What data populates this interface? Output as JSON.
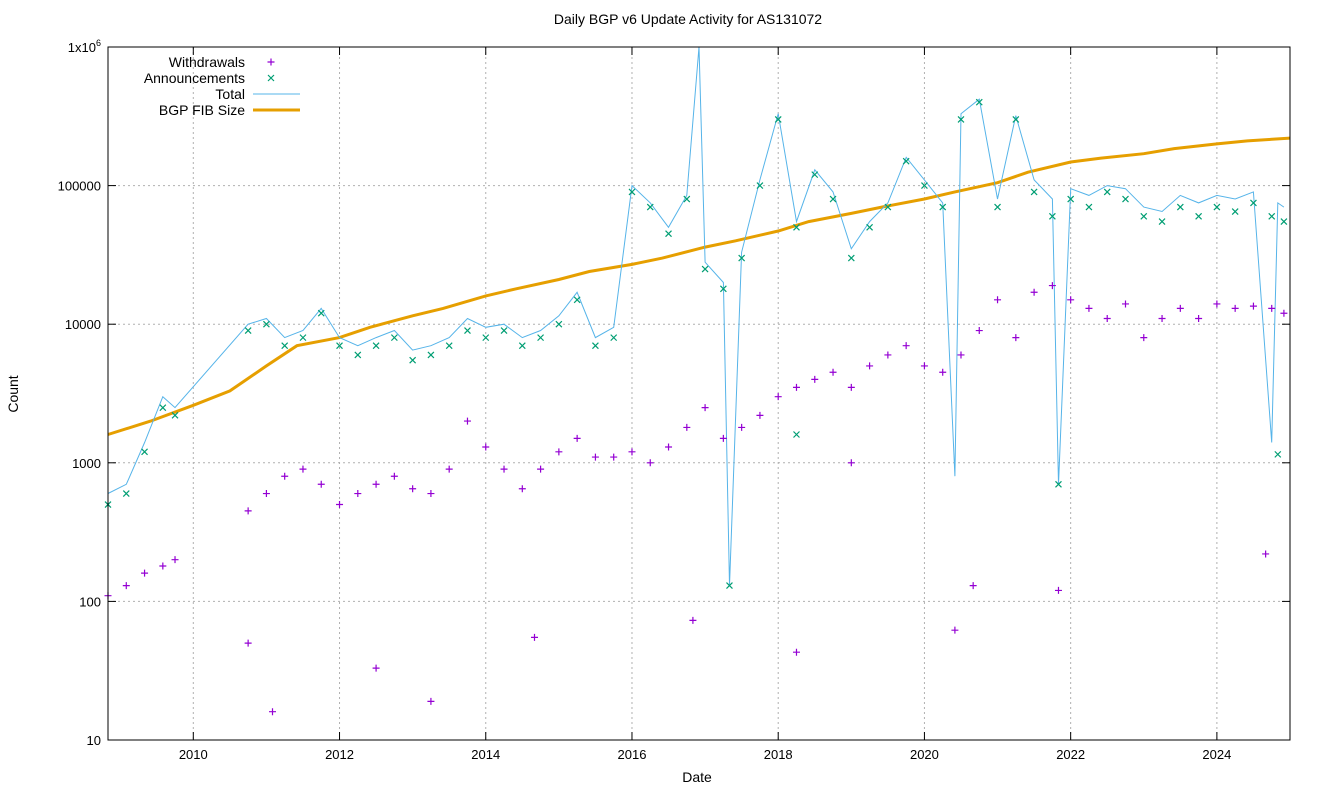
{
  "chart_data": {
    "type": "scatter",
    "title": "Daily BGP v6 Update Activity for AS131072",
    "xlabel": "Date",
    "ylabel": "Count",
    "x_scale": "time",
    "y_scale": "log",
    "xlim": [
      "2008-11-01",
      "2025-01-01"
    ],
    "ylim": [
      10,
      1000000
    ],
    "grid": true,
    "legend_position": "top-left",
    "x_ticks": [
      "2010",
      "2012",
      "2014",
      "2016",
      "2018",
      "2020",
      "2022",
      "2024"
    ],
    "y_ticks": [
      {
        "value": 10,
        "label": "10"
      },
      {
        "value": 100,
        "label": "100"
      },
      {
        "value": 1000,
        "label": "1000"
      },
      {
        "value": 10000,
        "label": "10000"
      },
      {
        "value": 100000,
        "label": "100000"
      },
      {
        "value": 1000000,
        "label": "1x10",
        "sup": "6"
      }
    ],
    "series": [
      {
        "name": "Withdrawals",
        "style": "points-plus",
        "color": "#9400d3",
        "points": [
          [
            "2008-11",
            110
          ],
          [
            "2009-02",
            130
          ],
          [
            "2009-05",
            160
          ],
          [
            "2009-08",
            180
          ],
          [
            "2009-10",
            200
          ],
          [
            "2010-10",
            450
          ],
          [
            "2011-01",
            600
          ],
          [
            "2011-04",
            800
          ],
          [
            "2011-07",
            900
          ],
          [
            "2011-10",
            700
          ],
          [
            "2012-01",
            500
          ],
          [
            "2012-04",
            600
          ],
          [
            "2012-07",
            700
          ],
          [
            "2012-10",
            800
          ],
          [
            "2013-01",
            650
          ],
          [
            "2013-04",
            600
          ],
          [
            "2013-07",
            900
          ],
          [
            "2013-10",
            2000
          ],
          [
            "2014-01",
            1300
          ],
          [
            "2014-04",
            900
          ],
          [
            "2014-07",
            650
          ],
          [
            "2014-10",
            900
          ],
          [
            "2015-01",
            1200
          ],
          [
            "2015-04",
            1500
          ],
          [
            "2015-07",
            1100
          ],
          [
            "2015-10",
            1100
          ],
          [
            "2016-01",
            1200
          ],
          [
            "2016-04",
            1000
          ],
          [
            "2016-07",
            1300
          ],
          [
            "2016-10",
            1800
          ],
          [
            "2017-01",
            2500
          ],
          [
            "2017-04",
            1500
          ],
          [
            "2017-07",
            1800
          ],
          [
            "2017-10",
            2200
          ],
          [
            "2018-01",
            3000
          ],
          [
            "2018-04",
            3500
          ],
          [
            "2018-07",
            4000
          ],
          [
            "2018-10",
            4500
          ],
          [
            "2019-01",
            3500
          ],
          [
            "2019-04",
            5000
          ],
          [
            "2019-07",
            6000
          ],
          [
            "2019-10",
            7000
          ],
          [
            "2020-01",
            5000
          ],
          [
            "2020-04",
            4500
          ],
          [
            "2020-07",
            6000
          ],
          [
            "2020-10",
            9000
          ],
          [
            "2021-01",
            15000
          ],
          [
            "2021-04",
            8000
          ],
          [
            "2021-07",
            17000
          ],
          [
            "2021-10",
            19000
          ],
          [
            "2022-01",
            15000
          ],
          [
            "2022-04",
            13000
          ],
          [
            "2022-07",
            11000
          ],
          [
            "2022-10",
            14000
          ],
          [
            "2023-01",
            8000
          ],
          [
            "2023-04",
            11000
          ],
          [
            "2023-07",
            13000
          ],
          [
            "2023-10",
            11000
          ],
          [
            "2024-01",
            14000
          ],
          [
            "2024-04",
            13000
          ],
          [
            "2024-07",
            13500
          ],
          [
            "2024-10",
            13000
          ],
          [
            "2024-12",
            12000
          ],
          [
            "2010-10",
            50
          ],
          [
            "2011-02",
            16
          ],
          [
            "2012-07",
            33
          ],
          [
            "2013-04",
            19
          ],
          [
            "2014-09",
            55
          ],
          [
            "2016-11",
            73
          ],
          [
            "2018-04",
            43
          ],
          [
            "2019-01",
            1000
          ],
          [
            "2020-06",
            62
          ],
          [
            "2020-09",
            130
          ],
          [
            "2021-11",
            120
          ],
          [
            "2024-09",
            220
          ]
        ]
      },
      {
        "name": "Announcements",
        "style": "points-cross",
        "color": "#009e73",
        "points": [
          [
            "2008-11",
            500
          ],
          [
            "2009-02",
            600
          ],
          [
            "2009-05",
            1200
          ],
          [
            "2009-08",
            2500
          ],
          [
            "2009-10",
            2200
          ],
          [
            "2010-10",
            9000
          ],
          [
            "2011-01",
            10000
          ],
          [
            "2011-04",
            7000
          ],
          [
            "2011-07",
            8000
          ],
          [
            "2011-10",
            12000
          ],
          [
            "2012-01",
            7000
          ],
          [
            "2012-04",
            6000
          ],
          [
            "2012-07",
            7000
          ],
          [
            "2012-10",
            8000
          ],
          [
            "2013-01",
            5500
          ],
          [
            "2013-04",
            6000
          ],
          [
            "2013-07",
            7000
          ],
          [
            "2013-10",
            9000
          ],
          [
            "2014-01",
            8000
          ],
          [
            "2014-04",
            9000
          ],
          [
            "2014-07",
            7000
          ],
          [
            "2014-10",
            8000
          ],
          [
            "2015-01",
            10000
          ],
          [
            "2015-04",
            15000
          ],
          [
            "2015-07",
            7000
          ],
          [
            "2015-10",
            8000
          ],
          [
            "2016-01",
            90000
          ],
          [
            "2016-04",
            70000
          ],
          [
            "2016-07",
            45000
          ],
          [
            "2016-10",
            80000
          ],
          [
            "2017-01",
            25000
          ],
          [
            "2017-04",
            18000
          ],
          [
            "2017-07",
            30000
          ],
          [
            "2017-10",
            100000
          ],
          [
            "2018-01",
            300000
          ],
          [
            "2018-04",
            50000
          ],
          [
            "2018-07",
            120000
          ],
          [
            "2018-10",
            80000
          ],
          [
            "2019-01",
            30000
          ],
          [
            "2019-04",
            50000
          ],
          [
            "2019-07",
            70000
          ],
          [
            "2019-10",
            150000
          ],
          [
            "2020-01",
            100000
          ],
          [
            "2020-04",
            70000
          ],
          [
            "2020-07",
            300000
          ],
          [
            "2020-10",
            400000
          ],
          [
            "2021-01",
            70000
          ],
          [
            "2021-04",
            300000
          ],
          [
            "2021-07",
            90000
          ],
          [
            "2021-10",
            60000
          ],
          [
            "2022-01",
            80000
          ],
          [
            "2022-04",
            70000
          ],
          [
            "2022-07",
            90000
          ],
          [
            "2022-10",
            80000
          ],
          [
            "2023-01",
            60000
          ],
          [
            "2023-04",
            55000
          ],
          [
            "2023-07",
            70000
          ],
          [
            "2023-10",
            60000
          ],
          [
            "2024-01",
            70000
          ],
          [
            "2024-04",
            65000
          ],
          [
            "2024-07",
            75000
          ],
          [
            "2024-10",
            60000
          ],
          [
            "2024-12",
            55000
          ],
          [
            "2017-05",
            130
          ],
          [
            "2018-04",
            1600
          ],
          [
            "2021-11",
            700
          ],
          [
            "2024-11",
            1150
          ]
        ]
      },
      {
        "name": "Total",
        "style": "line",
        "color": "#56b4e9",
        "points": [
          [
            "2008-11",
            600
          ],
          [
            "2009-02",
            700
          ],
          [
            "2009-05",
            1400
          ],
          [
            "2009-08",
            3000
          ],
          [
            "2009-10",
            2500
          ],
          [
            "2010-10",
            10000
          ],
          [
            "2011-01",
            11000
          ],
          [
            "2011-04",
            8000
          ],
          [
            "2011-07",
            9000
          ],
          [
            "2011-10",
            13000
          ],
          [
            "2012-01",
            8000
          ],
          [
            "2012-04",
            7000
          ],
          [
            "2012-07",
            8000
          ],
          [
            "2012-10",
            9000
          ],
          [
            "2013-01",
            6500
          ],
          [
            "2013-04",
            7000
          ],
          [
            "2013-07",
            8000
          ],
          [
            "2013-10",
            11000
          ],
          [
            "2014-01",
            9500
          ],
          [
            "2014-04",
            10000
          ],
          [
            "2014-07",
            8000
          ],
          [
            "2014-10",
            9000
          ],
          [
            "2015-01",
            11500
          ],
          [
            "2015-04",
            17000
          ],
          [
            "2015-07",
            8000
          ],
          [
            "2015-10",
            9500
          ],
          [
            "2016-01",
            100000
          ],
          [
            "2016-04",
            75000
          ],
          [
            "2016-07",
            50000
          ],
          [
            "2016-10",
            85000
          ],
          [
            "2016-12",
            1000000
          ],
          [
            "2017-01",
            28000
          ],
          [
            "2017-04",
            20000
          ],
          [
            "2017-05",
            130
          ],
          [
            "2017-07",
            33000
          ],
          [
            "2017-10",
            110000
          ],
          [
            "2018-01",
            330000
          ],
          [
            "2018-04",
            55000
          ],
          [
            "2018-07",
            130000
          ],
          [
            "2018-10",
            90000
          ],
          [
            "2019-01",
            35000
          ],
          [
            "2019-04",
            55000
          ],
          [
            "2019-07",
            75000
          ],
          [
            "2019-10",
            160000
          ],
          [
            "2020-01",
            110000
          ],
          [
            "2020-04",
            75000
          ],
          [
            "2020-06",
            800
          ],
          [
            "2020-07",
            330000
          ],
          [
            "2020-10",
            420000
          ],
          [
            "2021-01",
            80000
          ],
          [
            "2021-04",
            320000
          ],
          [
            "2021-07",
            110000
          ],
          [
            "2021-10",
            80000
          ],
          [
            "2021-11",
            700
          ],
          [
            "2022-01",
            95000
          ],
          [
            "2022-04",
            85000
          ],
          [
            "2022-07",
            100000
          ],
          [
            "2022-10",
            95000
          ],
          [
            "2023-01",
            70000
          ],
          [
            "2023-04",
            65000
          ],
          [
            "2023-07",
            85000
          ],
          [
            "2023-10",
            75000
          ],
          [
            "2024-01",
            85000
          ],
          [
            "2024-04",
            80000
          ],
          [
            "2024-07",
            90000
          ],
          [
            "2024-10",
            1400
          ],
          [
            "2024-11",
            75000
          ],
          [
            "2024-12",
            70000
          ]
        ]
      },
      {
        "name": "BGP FIB Size",
        "style": "line-thick",
        "color": "#e69f00",
        "points": [
          [
            "2008-11",
            1600
          ],
          [
            "2009-06",
            2000
          ],
          [
            "2010-01",
            2600
          ],
          [
            "2010-07",
            3300
          ],
          [
            "2011-01",
            5000
          ],
          [
            "2011-06",
            7000
          ],
          [
            "2012-01",
            8000
          ],
          [
            "2012-06",
            9500
          ],
          [
            "2013-01",
            11500
          ],
          [
            "2013-06",
            13000
          ],
          [
            "2014-01",
            16000
          ],
          [
            "2014-06",
            18000
          ],
          [
            "2015-01",
            21000
          ],
          [
            "2015-06",
            24000
          ],
          [
            "2016-01",
            27000
          ],
          [
            "2016-06",
            30000
          ],
          [
            "2017-01",
            36000
          ],
          [
            "2017-06",
            40000
          ],
          [
            "2018-01",
            47000
          ],
          [
            "2018-06",
            55000
          ],
          [
            "2019-01",
            63000
          ],
          [
            "2019-06",
            70000
          ],
          [
            "2020-01",
            80000
          ],
          [
            "2020-06",
            90000
          ],
          [
            "2021-01",
            105000
          ],
          [
            "2021-06",
            125000
          ],
          [
            "2022-01",
            148000
          ],
          [
            "2022-06",
            158000
          ],
          [
            "2023-01",
            170000
          ],
          [
            "2023-06",
            185000
          ],
          [
            "2024-01",
            200000
          ],
          [
            "2024-06",
            210000
          ],
          [
            "2025-01",
            220000
          ]
        ]
      }
    ]
  }
}
